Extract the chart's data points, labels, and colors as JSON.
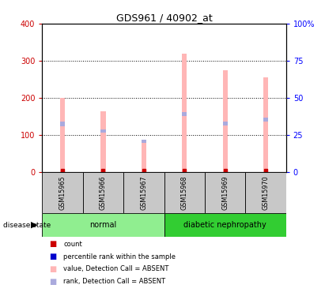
{
  "title": "GDS961 / 40902_at",
  "samples": [
    "GSM15965",
    "GSM15966",
    "GSM15967",
    "GSM15968",
    "GSM15969",
    "GSM15970"
  ],
  "pink_bar_heights": [
    200,
    163,
    85,
    318,
    275,
    256
  ],
  "blue_bar_bottoms": [
    123,
    105,
    78,
    150,
    125,
    135
  ],
  "blue_bar_heights": [
    12,
    10,
    9,
    12,
    10,
    11
  ],
  "ylim_left": [
    0,
    400
  ],
  "ylim_right": [
    0,
    100
  ],
  "yticks_left": [
    0,
    100,
    200,
    300,
    400
  ],
  "yticks_right": [
    0,
    25,
    50,
    75,
    100
  ],
  "yticklabels_right": [
    "0",
    "25",
    "50",
    "75",
    "100%"
  ],
  "legend_items": [
    {
      "label": "count",
      "color": "#CC0000"
    },
    {
      "label": "percentile rank within the sample",
      "color": "#0000CC"
    },
    {
      "label": "value, Detection Call = ABSENT",
      "color": "#FFB6B6"
    },
    {
      "label": "rank, Detection Call = ABSENT",
      "color": "#AAAADD"
    }
  ],
  "disease_state_label": "disease state",
  "bar_width": 0.12,
  "pink_color": "#FFB6B6",
  "blue_color": "#AAAADD",
  "red_color": "#CC0000",
  "dark_blue_color": "#0000CC",
  "plot_bg": "#FFFFFF",
  "sample_bg": "#C8C8C8",
  "normal_color": "#90EE90",
  "diabetic_color": "#32CD32",
  "group_info": [
    {
      "start": 0,
      "end": 3,
      "label": "normal",
      "color": "#90EE90"
    },
    {
      "start": 3,
      "end": 6,
      "label": "diabetic nephropathy",
      "color": "#32CD32"
    }
  ]
}
